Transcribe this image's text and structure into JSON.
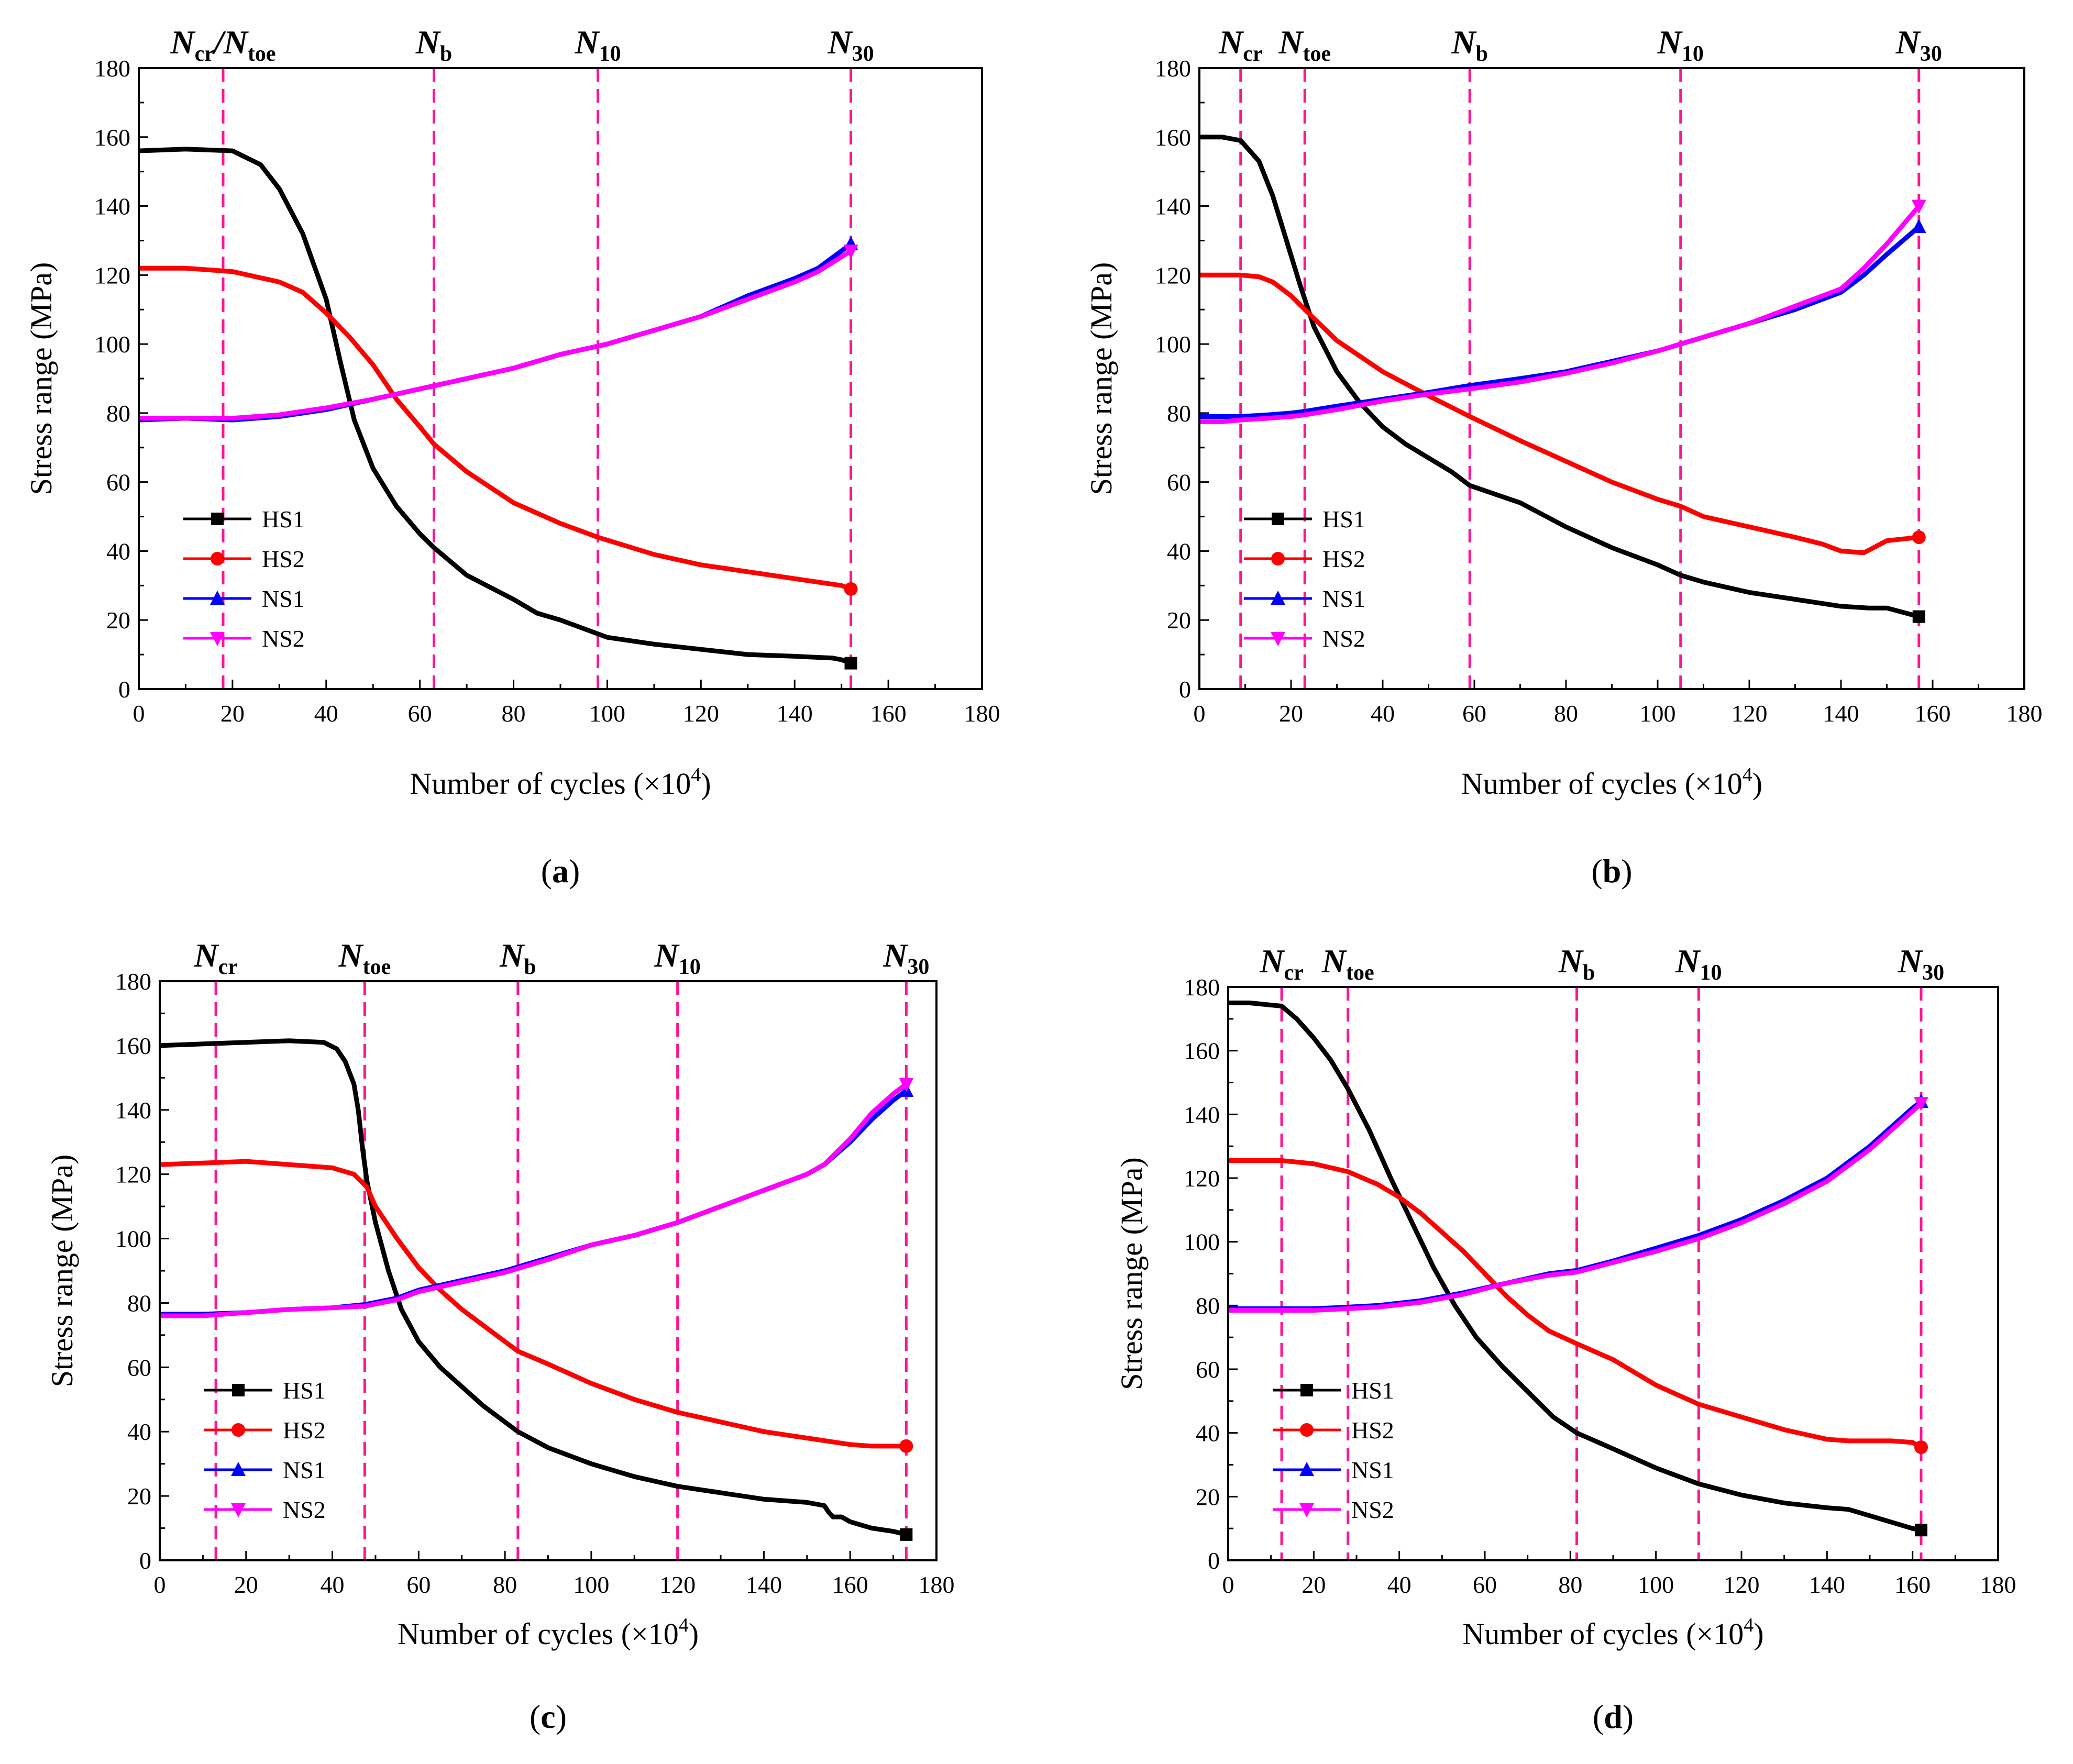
{
  "colors": {
    "HS1": "#000000",
    "HS2": "#ff0000",
    "NS1": "#0000ff",
    "NS2": "#ff00ff",
    "event": "#ff1493"
  },
  "chart_data": [
    {
      "type": "line",
      "panel": "a",
      "caption": "(a)",
      "xlabel": "Number of cycles (×10",
      "xlabel_exp": "4",
      "xlabel_close": ")",
      "ylabel": "Stress range (MPa)",
      "xlim": [
        0,
        180
      ],
      "ylim": [
        0,
        180
      ],
      "xticks": [
        0,
        20,
        40,
        60,
        80,
        100,
        120,
        140,
        160,
        180
      ],
      "yticks": [
        0,
        20,
        40,
        60,
        80,
        100,
        120,
        140,
        160,
        180
      ],
      "legend": [
        "HS1",
        "HS2",
        "NS1",
        "NS2"
      ],
      "events": [
        {
          "main": "N",
          "sub": "cr",
          "main2": "/N",
          "sub2": "toe",
          "x": 18
        },
        {
          "main": "N",
          "sub": "b",
          "x": 63
        },
        {
          "main": "N",
          "sub": "10",
          "x": 98
        },
        {
          "main": "N",
          "sub": "30",
          "x": 152
        }
      ],
      "series": [
        {
          "name": "HS1",
          "x": [
            0,
            10,
            20,
            26,
            30,
            35,
            40,
            43,
            46,
            50,
            55,
            60,
            63,
            70,
            80,
            85,
            90,
            100,
            110,
            120,
            130,
            140,
            148,
            150,
            152
          ],
          "y": [
            156,
            156.5,
            156,
            152,
            145,
            132,
            113,
            95,
            78,
            64,
            53,
            45,
            41,
            33,
            26,
            22,
            20,
            15,
            13,
            11.5,
            10,
            9.5,
            9,
            8.5,
            7.5
          ]
        },
        {
          "name": "HS2",
          "x": [
            0,
            10,
            20,
            25,
            30,
            35,
            40,
            45,
            50,
            55,
            60,
            63,
            70,
            80,
            90,
            98,
            110,
            120,
            130,
            140,
            150,
            152
          ],
          "y": [
            122,
            122,
            121,
            119.5,
            118,
            115,
            109,
            102,
            94,
            84,
            76,
            71,
            63,
            54,
            48,
            44,
            39,
            36,
            34,
            32,
            30,
            29
          ]
        },
        {
          "name": "NS1",
          "x": [
            0,
            10,
            20,
            30,
            40,
            50,
            60,
            70,
            80,
            90,
            100,
            110,
            120,
            130,
            140,
            145,
            152
          ],
          "y": [
            78,
            78.5,
            78,
            79,
            81,
            84,
            87,
            90,
            93,
            97,
            100,
            104,
            108,
            114,
            119,
            122,
            129
          ]
        },
        {
          "name": "NS2",
          "x": [
            0,
            10,
            20,
            30,
            40,
            50,
            60,
            70,
            80,
            90,
            100,
            110,
            120,
            130,
            140,
            145,
            152
          ],
          "y": [
            78.5,
            78.5,
            78.5,
            79.5,
            81.5,
            84,
            87,
            90,
            93,
            97,
            100,
            104,
            108,
            113,
            118,
            121,
            127
          ]
        }
      ]
    },
    {
      "type": "line",
      "panel": "b",
      "caption": "(b)",
      "xlabel": "Number of cycles (×10",
      "xlabel_exp": "4",
      "xlabel_close": ")",
      "ylabel": "Stress range (MPa)",
      "xlim": [
        0,
        180
      ],
      "ylim": [
        0,
        180
      ],
      "xticks": [
        0,
        20,
        40,
        60,
        80,
        100,
        120,
        140,
        160,
        180
      ],
      "yticks": [
        0,
        20,
        40,
        60,
        80,
        100,
        120,
        140,
        160,
        180
      ],
      "legend": [
        "HS1",
        "HS2",
        "NS1",
        "NS2"
      ],
      "events": [
        {
          "main": "N",
          "sub": "cr",
          "x": 9
        },
        {
          "main": "N",
          "sub": "toe",
          "x": 23
        },
        {
          "main": "N",
          "sub": "b",
          "x": 59
        },
        {
          "main": "N",
          "sub": "10",
          "x": 105
        },
        {
          "main": "N",
          "sub": "30",
          "x": 157
        }
      ],
      "series": [
        {
          "name": "HS1",
          "x": [
            0,
            5,
            9,
            13,
            16,
            19,
            22,
            25,
            30,
            35,
            40,
            45,
            50,
            55,
            59,
            70,
            80,
            90,
            100,
            105,
            110,
            120,
            130,
            140,
            146,
            150,
            157
          ],
          "y": [
            160,
            160,
            159,
            153,
            143,
            130,
            117,
            105,
            92,
            83,
            76,
            71,
            67,
            63,
            59,
            54,
            47,
            41,
            36,
            33,
            31,
            28,
            26,
            24,
            23.5,
            23.5,
            21
          ]
        },
        {
          "name": "HS2",
          "x": [
            0,
            5,
            9,
            13,
            16,
            20,
            23,
            30,
            40,
            50,
            59,
            70,
            80,
            90,
            100,
            105,
            110,
            120,
            130,
            136,
            140,
            145,
            150,
            157
          ],
          "y": [
            120,
            120,
            120,
            119.5,
            118,
            114,
            110,
            101,
            92,
            85,
            79,
            72,
            66,
            60,
            55,
            53,
            50,
            47,
            44,
            42,
            40,
            39.5,
            43,
            44
          ]
        },
        {
          "name": "NS1",
          "x": [
            0,
            5,
            9,
            15,
            20,
            23,
            30,
            40,
            50,
            59,
            70,
            80,
            90,
            100,
            105,
            110,
            120,
            130,
            140,
            145,
            150,
            157
          ],
          "y": [
            79,
            79,
            79,
            79.5,
            80,
            80.5,
            82,
            84,
            86,
            88,
            90,
            92,
            95,
            98,
            100,
            102,
            106,
            110,
            115,
            120,
            126,
            134
          ]
        },
        {
          "name": "NS2",
          "x": [
            0,
            5,
            9,
            15,
            20,
            23,
            30,
            40,
            50,
            59,
            70,
            80,
            90,
            100,
            105,
            110,
            120,
            130,
            140,
            145,
            150,
            157
          ],
          "y": [
            77.5,
            77.5,
            78,
            78.5,
            79,
            79.5,
            81,
            83.5,
            85.5,
            87,
            89,
            91.5,
            94.5,
            98,
            100,
            102,
            106,
            111,
            116,
            122,
            129,
            140
          ]
        }
      ]
    },
    {
      "type": "line",
      "panel": "c",
      "caption": "(c)",
      "xlabel": "Number of cycles (×10",
      "xlabel_exp": "4",
      "xlabel_close": ")",
      "ylabel": "Stress range (MPa)",
      "xlim": [
        0,
        180
      ],
      "ylim": [
        0,
        180
      ],
      "xticks": [
        0,
        20,
        40,
        60,
        80,
        100,
        120,
        140,
        160,
        180
      ],
      "yticks": [
        0,
        20,
        40,
        60,
        80,
        100,
        120,
        140,
        160,
        180
      ],
      "legend": [
        "HS1",
        "HS2",
        "NS1",
        "NS2"
      ],
      "events": [
        {
          "main": "N",
          "sub": "cr",
          "x": 13
        },
        {
          "main": "N",
          "sub": "toe",
          "x": 47.5
        },
        {
          "main": "N",
          "sub": "b",
          "x": 83
        },
        {
          "main": "N",
          "sub": "10",
          "x": 120
        },
        {
          "main": "N",
          "sub": "30",
          "x": 173
        }
      ],
      "series": [
        {
          "name": "HS1",
          "x": [
            0,
            10,
            20,
            30,
            38,
            41,
            43,
            45,
            46,
            47,
            48,
            50,
            53,
            56,
            60,
            65,
            70,
            75,
            80,
            83,
            90,
            100,
            110,
            120,
            130,
            140,
            150,
            154,
            155,
            156,
            158,
            160,
            165,
            170,
            173
          ],
          "y": [
            160,
            160.5,
            161,
            161.5,
            161,
            159,
            155,
            148,
            140,
            128,
            118,
            105,
            90,
            78,
            68,
            60,
            54,
            48,
            43,
            40,
            35,
            30,
            26,
            23,
            21,
            19,
            18,
            17,
            15,
            13.5,
            13.5,
            12,
            10,
            9,
            8
          ]
        },
        {
          "name": "HS2",
          "x": [
            0,
            10,
            20,
            30,
            40,
            45,
            48,
            50,
            55,
            60,
            65,
            70,
            75,
            80,
            83,
            90,
            100,
            110,
            120,
            130,
            140,
            150,
            155,
            160,
            165,
            170,
            173
          ],
          "y": [
            123,
            123.5,
            124,
            123,
            122,
            120,
            116,
            110,
            100,
            91,
            84,
            78,
            73,
            68,
            65,
            61,
            55,
            50,
            46,
            43,
            40,
            38,
            37,
            36,
            35.5,
            35.5,
            35.5
          ]
        },
        {
          "name": "NS1",
          "x": [
            0,
            10,
            20,
            30,
            40,
            47.5,
            55,
            60,
            70,
            80,
            90,
            100,
            110,
            120,
            130,
            140,
            150,
            154,
            160,
            165,
            170,
            173
          ],
          "y": [
            76.5,
            76.5,
            77,
            78,
            78.5,
            79.5,
            81.5,
            84,
            87,
            90,
            94,
            98,
            101,
            105,
            110,
            115,
            120,
            123,
            130,
            137,
            143,
            146
          ]
        },
        {
          "name": "NS2",
          "x": [
            0,
            10,
            20,
            30,
            40,
            47.5,
            55,
            60,
            70,
            80,
            90,
            100,
            110,
            120,
            130,
            140,
            150,
            154,
            160,
            165,
            170,
            173
          ],
          "y": [
            76,
            76,
            77,
            78,
            78.5,
            79,
            81,
            83.5,
            86.5,
            89.5,
            93.5,
            98,
            101,
            105,
            110,
            115,
            120,
            123,
            131,
            139,
            145,
            148
          ]
        }
      ]
    },
    {
      "type": "line",
      "panel": "d",
      "caption": "(d)",
      "xlabel": "Number of cycles (×10",
      "xlabel_exp": "4",
      "xlabel_close": ")",
      "ylabel": "Stress range (MPa)",
      "xlim": [
        0,
        180
      ],
      "ylim": [
        0,
        180
      ],
      "xticks": [
        0,
        20,
        40,
        60,
        80,
        100,
        120,
        140,
        160,
        180
      ],
      "yticks": [
        0,
        20,
        40,
        60,
        80,
        100,
        120,
        140,
        160,
        180
      ],
      "legend": [
        "HS1",
        "HS2",
        "NS1",
        "NS2"
      ],
      "events": [
        {
          "main": "N",
          "sub": "cr",
          "x": 12.5
        },
        {
          "main": "N",
          "sub": "toe",
          "x": 28
        },
        {
          "main": "N",
          "sub": "b",
          "x": 81.5
        },
        {
          "main": "N",
          "sub": "10",
          "x": 110
        },
        {
          "main": "N",
          "sub": "30",
          "x": 162
        }
      ],
      "series": [
        {
          "name": "HS1",
          "x": [
            0,
            5,
            12.5,
            16,
            20,
            24,
            28,
            33,
            38,
            43,
            48,
            53,
            58,
            64,
            70,
            76,
            81.5,
            90,
            100,
            110,
            120,
            130,
            140,
            145,
            150,
            155,
            160,
            162
          ],
          "y": [
            175,
            175,
            174,
            170,
            164,
            157,
            148,
            135,
            120,
            106,
            92,
            80,
            70,
            61,
            53,
            45,
            40,
            35,
            29,
            24,
            20.5,
            18,
            16.5,
            16,
            14,
            12,
            10,
            9.5
          ]
        },
        {
          "name": "HS2",
          "x": [
            0,
            12.5,
            20,
            28,
            35,
            40,
            45,
            50,
            55,
            60,
            65,
            70,
            75,
            81.5,
            90,
            100,
            110,
            120,
            130,
            140,
            145,
            150,
            155,
            160,
            162
          ],
          "y": [
            125.5,
            125.5,
            124.5,
            122,
            118,
            114,
            109,
            103,
            97,
            90,
            83,
            77,
            72,
            68,
            63,
            55,
            49,
            45,
            41,
            38,
            37.5,
            37.5,
            37.5,
            37,
            35.5
          ]
        },
        {
          "name": "NS1",
          "x": [
            0,
            10,
            20,
            28,
            35,
            45,
            55,
            65,
            75,
            81.5,
            90,
            100,
            110,
            120,
            130,
            140,
            150,
            155,
            160,
            162
          ],
          "y": [
            79,
            79,
            79,
            79.5,
            80,
            81.5,
            84,
            87,
            90,
            91,
            94,
            98,
            102,
            107,
            113,
            120,
            130,
            136,
            142,
            144
          ]
        },
        {
          "name": "NS2",
          "x": [
            0,
            10,
            20,
            28,
            35,
            45,
            55,
            65,
            75,
            81.5,
            90,
            100,
            110,
            120,
            130,
            140,
            150,
            155,
            160,
            162
          ],
          "y": [
            78.5,
            78.5,
            78.5,
            79,
            79.5,
            81,
            83.5,
            87,
            89.5,
            90.5,
            93.5,
            97,
            101,
            106,
            112,
            119,
            129,
            135,
            141,
            143.5
          ]
        }
      ]
    }
  ]
}
